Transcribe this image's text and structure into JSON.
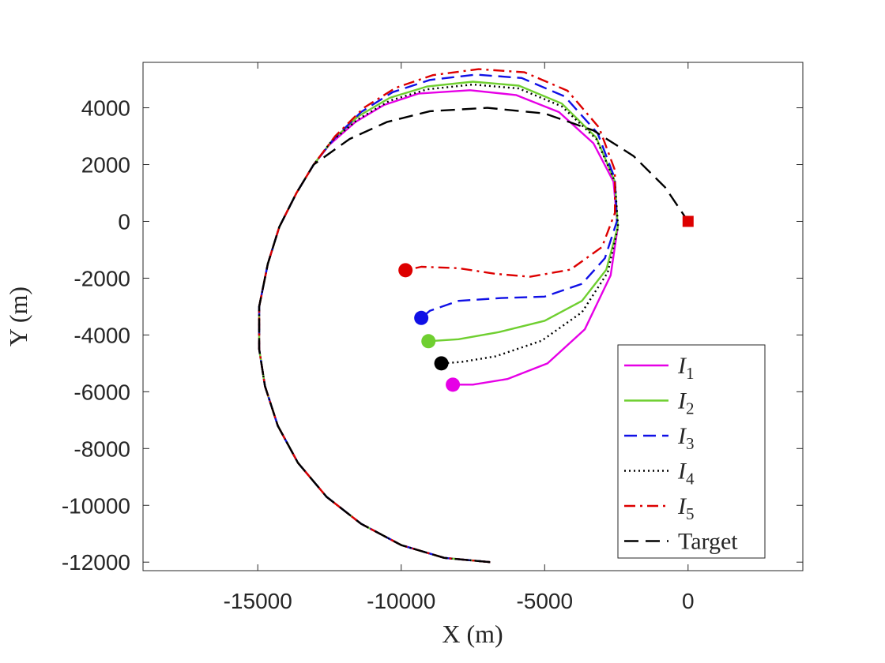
{
  "chart_data": {
    "type": "line",
    "title": "",
    "xlabel": "X (m)",
    "ylabel": "Y (m)",
    "xlim": [
      -19000,
      4000
    ],
    "ylim": [
      -12300,
      5600
    ],
    "xticks": [
      -15000,
      -10000,
      -5000,
      0
    ],
    "yticks": [
      -12000,
      -10000,
      -8000,
      -6000,
      -4000,
      -2000,
      0,
      2000,
      4000
    ],
    "grid": false,
    "legend_position": "bottom-right",
    "common_path": [
      [
        -6900,
        -12000
      ],
      [
        -8500,
        -11850
      ],
      [
        -10000,
        -11400
      ],
      [
        -11400,
        -10650
      ],
      [
        -12600,
        -9700
      ],
      [
        -13600,
        -8500
      ],
      [
        -14300,
        -7200
      ],
      [
        -14750,
        -5800
      ],
      [
        -14950,
        -4500
      ],
      [
        -14950,
        -3000
      ],
      [
        -14650,
        -1500
      ],
      [
        -14250,
        -200
      ],
      [
        -13650,
        1000
      ],
      [
        -13050,
        2000
      ]
    ],
    "series": [
      {
        "name": "I",
        "sub": "1",
        "color": "#e600e6",
        "dash": "solid",
        "path": [
          [
            -12500,
            2700
          ],
          [
            -11600,
            3500
          ],
          [
            -10600,
            4100
          ],
          [
            -9400,
            4500
          ],
          [
            -7600,
            4620
          ],
          [
            -6000,
            4450
          ],
          [
            -4500,
            3850
          ],
          [
            -3300,
            2750
          ],
          [
            -2600,
            1400
          ],
          [
            -2450,
            -200
          ],
          [
            -2700,
            -1900
          ],
          [
            -3600,
            -3800
          ],
          [
            -4900,
            -5000
          ],
          [
            -6300,
            -5550
          ],
          [
            -7500,
            -5750
          ],
          [
            -8200,
            -5750
          ]
        ],
        "endpoint": [
          -8200,
          -5750
        ]
      },
      {
        "name": "I",
        "sub": "2",
        "color": "#6fcf30",
        "dash": "solid",
        "path": [
          [
            -12400,
            2850
          ],
          [
            -11500,
            3700
          ],
          [
            -10400,
            4350
          ],
          [
            -9100,
            4750
          ],
          [
            -7500,
            4920
          ],
          [
            -5900,
            4780
          ],
          [
            -4400,
            4150
          ],
          [
            -3200,
            2950
          ],
          [
            -2550,
            1400
          ],
          [
            -2450,
            -200
          ],
          [
            -2850,
            -1700
          ],
          [
            -3700,
            -2800
          ],
          [
            -5000,
            -3500
          ],
          [
            -6600,
            -3900
          ],
          [
            -8000,
            -4150
          ],
          [
            -9050,
            -4220
          ]
        ],
        "endpoint": [
          -9050,
          -4220
        ]
      },
      {
        "name": "I",
        "sub": "3",
        "color": "#1010e6",
        "dash": "dashed",
        "path": [
          [
            -12350,
            2900
          ],
          [
            -11400,
            3850
          ],
          [
            -10300,
            4550
          ],
          [
            -9000,
            4980
          ],
          [
            -7400,
            5170
          ],
          [
            -5800,
            5050
          ],
          [
            -4300,
            4400
          ],
          [
            -3150,
            3100
          ],
          [
            -2550,
            1500
          ],
          [
            -2480,
            0
          ],
          [
            -2900,
            -1300
          ],
          [
            -3700,
            -2200
          ],
          [
            -5000,
            -2650
          ],
          [
            -6500,
            -2700
          ],
          [
            -8000,
            -2800
          ],
          [
            -9000,
            -3150
          ],
          [
            -9300,
            -3400
          ]
        ],
        "endpoint": [
          -9300,
          -3400
        ]
      },
      {
        "name": "I",
        "sub": "4",
        "color": "#000000",
        "dash": "dotted",
        "path": [
          [
            -12450,
            2800
          ],
          [
            -11500,
            3600
          ],
          [
            -10400,
            4250
          ],
          [
            -9100,
            4650
          ],
          [
            -7500,
            4820
          ],
          [
            -5900,
            4680
          ],
          [
            -4400,
            4050
          ],
          [
            -3200,
            2900
          ],
          [
            -2550,
            1400
          ],
          [
            -2440,
            -200
          ],
          [
            -2800,
            -1800
          ],
          [
            -3700,
            -3200
          ],
          [
            -5100,
            -4200
          ],
          [
            -6700,
            -4750
          ],
          [
            -7900,
            -4950
          ],
          [
            -8600,
            -5000
          ]
        ],
        "endpoint": [
          -8600,
          -5000
        ]
      },
      {
        "name": "I",
        "sub": "5",
        "color": "#dd0000",
        "dash": "dashdot",
        "path": [
          [
            -12300,
            3000
          ],
          [
            -11300,
            4000
          ],
          [
            -10200,
            4700
          ],
          [
            -8900,
            5150
          ],
          [
            -7300,
            5360
          ],
          [
            -5700,
            5250
          ],
          [
            -4200,
            4600
          ],
          [
            -3100,
            3300
          ],
          [
            -2550,
            1800
          ],
          [
            -2550,
            300
          ],
          [
            -3000,
            -900
          ],
          [
            -4100,
            -1700
          ],
          [
            -5500,
            -1950
          ],
          [
            -6700,
            -1850
          ],
          [
            -8000,
            -1650
          ],
          [
            -9300,
            -1600
          ],
          [
            -9850,
            -1720
          ]
        ],
        "endpoint": [
          -9850,
          -1720
        ]
      },
      {
        "name": "Target",
        "sub": "",
        "color": "#000000",
        "dash": "longdash",
        "path": [
          [
            -13050,
            2000
          ],
          [
            -11800,
            2900
          ],
          [
            -10500,
            3500
          ],
          [
            -9000,
            3880
          ],
          [
            -7000,
            4000
          ],
          [
            -5000,
            3800
          ],
          [
            -3300,
            3200
          ],
          [
            -1900,
            2300
          ],
          [
            -800,
            1200
          ],
          [
            0,
            0
          ]
        ],
        "endpoint": [
          0,
          0
        ],
        "endpoint_marker": "square",
        "endpoint_color": "#dd0000"
      }
    ]
  }
}
